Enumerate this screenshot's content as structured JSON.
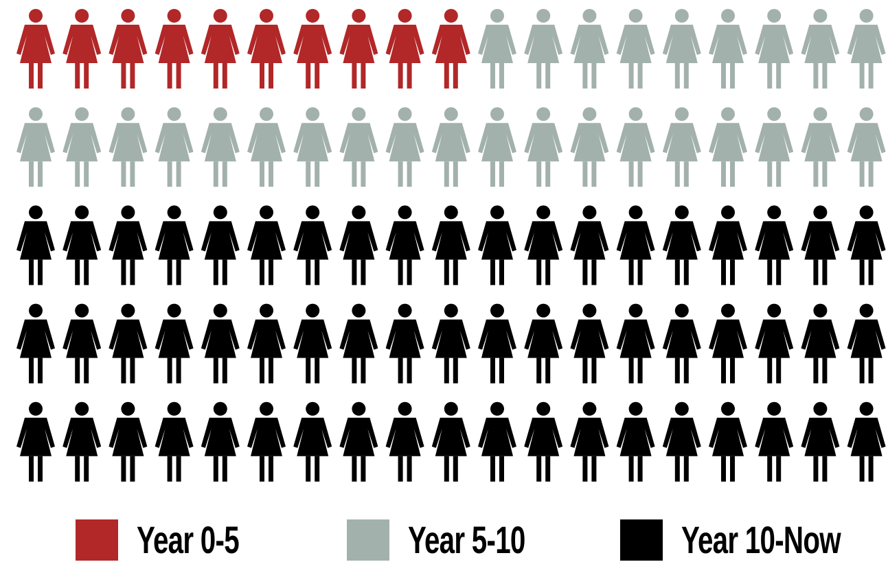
{
  "chart_data": {
    "type": "pictogram",
    "title": "",
    "icon": "woman-icon",
    "columns": 19,
    "rows": 5,
    "series": [
      {
        "name": "Year 0-5",
        "count": 10,
        "color": "#b22728"
      },
      {
        "name": "Year 5-10",
        "count": 28,
        "color": "#a3b1ad"
      },
      {
        "name": "Year 10-Now",
        "count": 57,
        "color": "#000000"
      }
    ],
    "legend_position": "bottom"
  }
}
